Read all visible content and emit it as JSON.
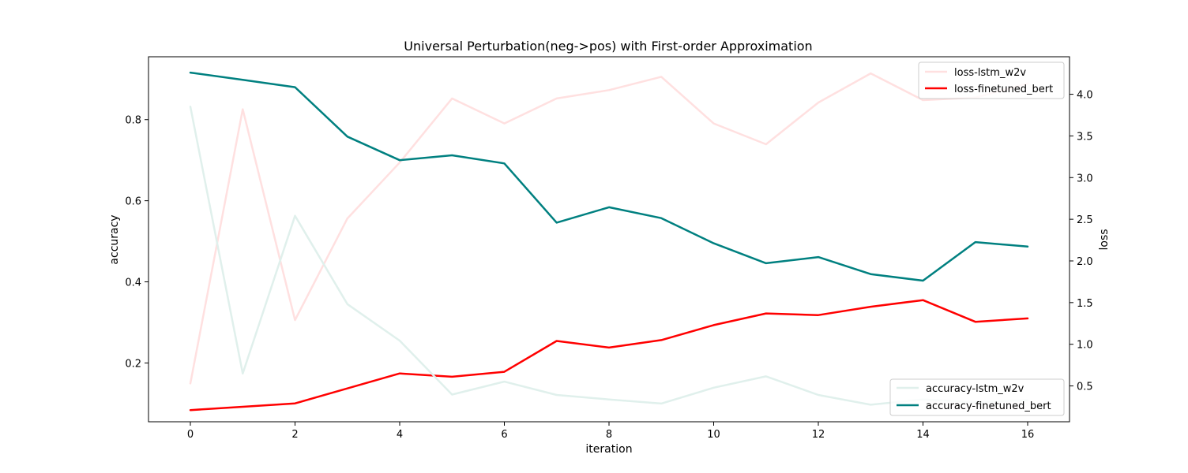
{
  "chart_data": {
    "type": "line",
    "title": "Universal Perturbation(neg->pos) with First-order Approximation",
    "xlabel": "iteration",
    "ylabel_left": "accuracy",
    "ylabel_right": "loss",
    "x": [
      0,
      1,
      2,
      3,
      4,
      5,
      6,
      7,
      8,
      9,
      10,
      11,
      12,
      13,
      14,
      15,
      16
    ],
    "xlim": [
      -0.8,
      16.8
    ],
    "xticks": [
      0,
      2,
      4,
      6,
      8,
      10,
      12,
      14,
      16
    ],
    "ylim_left": [
      0.055,
      0.955
    ],
    "yticks_left": [
      "0.2",
      "0.4",
      "0.6",
      "0.8"
    ],
    "ylim_right": [
      0.07,
      4.45
    ],
    "yticks_right": [
      "0.5",
      "1.0",
      "1.5",
      "2.0",
      "2.5",
      "3.0",
      "3.5",
      "4.0"
    ],
    "grid": false,
    "legends": [
      {
        "placement": "upper-right",
        "entries": [
          "loss-lstm_w2v",
          "loss-finetuned_bert"
        ]
      },
      {
        "placement": "lower-right",
        "entries": [
          "accuracy-lstm_w2v",
          "accuracy-finetuned_bert"
        ]
      }
    ],
    "series": [
      {
        "name": "loss-lstm_w2v",
        "axis": "right",
        "color": "#ffe0e0",
        "values": [
          0.53,
          3.82,
          1.29,
          2.51,
          3.18,
          3.95,
          3.65,
          3.95,
          4.05,
          4.21,
          3.65,
          3.4,
          3.9,
          4.25,
          3.93,
          3.96,
          4.13
        ]
      },
      {
        "name": "loss-finetuned_bert",
        "axis": "right",
        "color": "#ff0000",
        "values": [
          0.21,
          0.25,
          0.29,
          0.47,
          0.65,
          0.61,
          0.67,
          1.04,
          0.96,
          1.05,
          1.23,
          1.37,
          1.35,
          1.45,
          1.53,
          1.27,
          1.31
        ]
      },
      {
        "name": "accuracy-lstm_w2v",
        "axis": "left",
        "color": "#e0f0ec",
        "values": [
          0.832,
          0.174,
          0.563,
          0.345,
          0.255,
          0.122,
          0.154,
          0.121,
          0.11,
          0.1,
          0.139,
          0.167,
          0.121,
          0.097,
          0.11,
          0.103,
          0.108
        ]
      },
      {
        "name": "accuracy-finetuned_bert",
        "axis": "left",
        "color": "#008080",
        "values": [
          0.916,
          0.898,
          0.88,
          0.758,
          0.7,
          0.712,
          0.692,
          0.546,
          0.584,
          0.557,
          0.495,
          0.446,
          0.461,
          0.419,
          0.403,
          0.498,
          0.487
        ]
      }
    ]
  }
}
